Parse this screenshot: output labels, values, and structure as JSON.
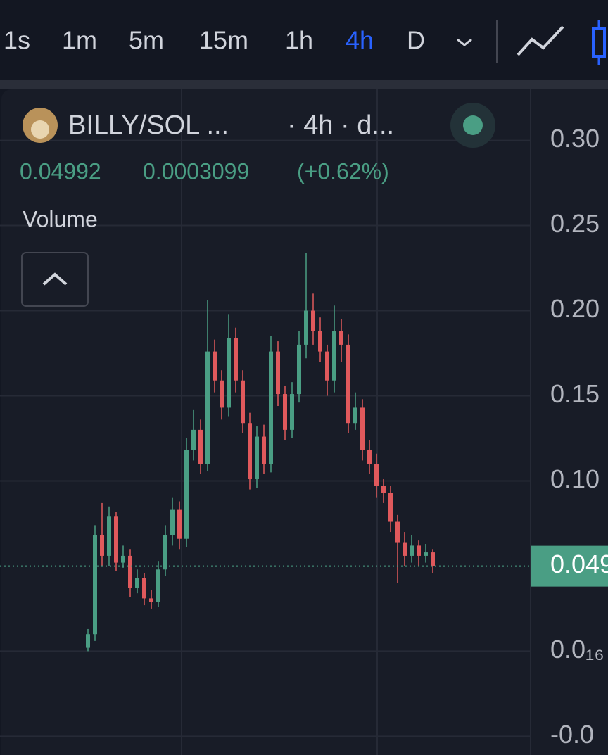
{
  "toolbar": {
    "intervals": [
      "1s",
      "1m",
      "5m",
      "15m",
      "1h",
      "4h",
      "D"
    ],
    "active": 5
  },
  "legend": {
    "symbol": "BILLY/SOL ...",
    "interval": "· 4h · d...",
    "close": "0.04992",
    "change": "0.0003099",
    "change_pct": "(+0.62%)",
    "study": "Volume"
  },
  "chart_data": {
    "type": "candlestick",
    "up_color": "#4a9e84",
    "down_color": "#e0595c",
    "open": [
      0.002,
      0.01,
      0.068,
      0.056,
      0.079,
      0.052,
      0.056,
      0.037,
      0.043,
      0.031,
      0.029,
      0.048,
      0.068,
      0.083,
      0.066,
      0.118,
      0.13,
      0.11,
      0.176,
      0.159,
      0.143,
      0.184,
      0.159,
      0.134,
      0.101,
      0.126,
      0.11,
      0.176,
      0.151,
      0.13,
      0.151,
      0.18,
      0.2,
      0.188,
      0.176,
      0.159,
      0.188,
      0.18,
      0.134,
      0.143,
      0.118,
      0.11,
      0.097,
      0.093,
      0.076,
      0.064,
      0.056,
      0.062,
      0.056,
      0.058
    ],
    "high": [
      0.013,
      0.074,
      0.087,
      0.085,
      0.082,
      0.062,
      0.06,
      0.048,
      0.046,
      0.036,
      0.053,
      0.074,
      0.09,
      0.088,
      0.125,
      0.142,
      0.136,
      0.206,
      0.183,
      0.165,
      0.198,
      0.19,
      0.165,
      0.14,
      0.132,
      0.133,
      0.185,
      0.182,
      0.156,
      0.158,
      0.188,
      0.234,
      0.21,
      0.196,
      0.18,
      0.203,
      0.195,
      0.186,
      0.152,
      0.148,
      0.124,
      0.116,
      0.101,
      0.097,
      0.08,
      0.07,
      0.068,
      0.065,
      0.063,
      0.06
    ],
    "low": [
      0.0,
      0.006,
      0.05,
      0.05,
      0.047,
      0.049,
      0.032,
      0.034,
      0.027,
      0.025,
      0.026,
      0.044,
      0.062,
      0.06,
      0.061,
      0.112,
      0.104,
      0.106,
      0.152,
      0.136,
      0.138,
      0.152,
      0.128,
      0.095,
      0.096,
      0.104,
      0.105,
      0.144,
      0.124,
      0.125,
      0.146,
      0.172,
      0.18,
      0.17,
      0.15,
      0.152,
      0.17,
      0.128,
      0.13,
      0.112,
      0.104,
      0.09,
      0.087,
      0.07,
      0.04,
      0.05,
      0.052,
      0.05,
      0.052,
      0.046
    ],
    "close": [
      0.01,
      0.068,
      0.056,
      0.079,
      0.052,
      0.056,
      0.037,
      0.043,
      0.031,
      0.029,
      0.048,
      0.068,
      0.083,
      0.066,
      0.118,
      0.13,
      0.11,
      0.176,
      0.159,
      0.143,
      0.184,
      0.159,
      0.134,
      0.101,
      0.126,
      0.11,
      0.176,
      0.151,
      0.13,
      0.151,
      0.18,
      0.2,
      0.188,
      0.176,
      0.159,
      0.188,
      0.18,
      0.134,
      0.143,
      0.118,
      0.11,
      0.097,
      0.093,
      0.076,
      0.064,
      0.056,
      0.062,
      0.056,
      0.058,
      0.05
    ],
    "last_price": 0.04992,
    "ylim": [
      -0.061,
      0.33
    ],
    "yticks": [
      {
        "value": -0.05,
        "label": "-0.0"
      },
      {
        "value": 0,
        "label": "0.0₁₆"
      },
      {
        "value": 0.1,
        "label": "0.10"
      },
      {
        "value": 0.15,
        "label": "0.15"
      },
      {
        "value": 0.2,
        "label": "0.20"
      },
      {
        "value": 0.25,
        "label": "0.25"
      },
      {
        "value": 0.3,
        "label": "0.30"
      }
    ],
    "grid": true
  }
}
